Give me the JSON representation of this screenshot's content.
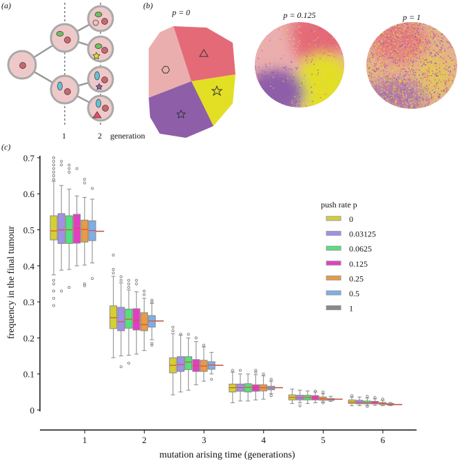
{
  "panel_a": {
    "label": "(a)",
    "generation_ticks": [
      "1",
      "2"
    ],
    "generation_label": "generation"
  },
  "panel_b": {
    "label": "(b)",
    "tumours": [
      {
        "title": "p = 0",
        "push_rate": 0
      },
      {
        "title": "p = 0.125",
        "push_rate": 0.125
      },
      {
        "title": "p = 1",
        "push_rate": 1
      }
    ],
    "clone_colors": {
      "pink": "#ebaeae",
      "red": "#e56a78",
      "yellow": "#e2df25",
      "purple": "#8e5fa8"
    }
  },
  "panel_c": {
    "label": "(c)"
  },
  "chart_data": {
    "type": "box",
    "title": "",
    "xlabel": "mutation arising time (generations)",
    "ylabel": "frequency in the final tumour",
    "categories": [
      "1",
      "2",
      "3",
      "4",
      "5",
      "6"
    ],
    "yticks": [
      "0",
      "0.1",
      "0.2",
      "0.3",
      "0.4",
      "0.5",
      "0.6",
      "0.7"
    ],
    "ylim": [
      0,
      0.72
    ],
    "legend": {
      "title": "push rate p",
      "placement": "right"
    },
    "series": [
      {
        "name": "0",
        "color": "#d4cf34",
        "stats": [
          [
            0.375,
            0.472,
            0.497,
            0.539,
            0.635
          ],
          [
            0.145,
            0.226,
            0.256,
            0.289,
            0.371
          ],
          [
            0.042,
            0.103,
            0.124,
            0.145,
            0.212
          ],
          [
            0.02,
            0.05,
            0.062,
            0.072,
            0.105
          ],
          [
            0.018,
            0.028,
            0.035,
            0.042,
            0.058
          ],
          [
            0.012,
            0.018,
            0.022,
            0.028,
            0.036
          ]
        ],
        "outliers": [
          [
            0.64,
            0.65,
            0.66,
            0.67,
            0.68,
            0.69,
            0.7,
            0.36,
            0.35,
            0.33,
            0.31,
            0.29
          ],
          [
            0.38,
            0.39,
            0.43
          ],
          [
            0.22,
            0.23
          ],
          [
            0.11
          ],
          [],
          [
            0.04
          ]
        ]
      },
      {
        "name": "0.03125",
        "color": "#a090e8",
        "stats": [
          [
            0.388,
            0.462,
            0.5,
            0.545,
            0.623
          ],
          [
            0.15,
            0.22,
            0.245,
            0.285,
            0.353
          ],
          [
            0.05,
            0.107,
            0.126,
            0.148,
            0.208
          ],
          [
            0.025,
            0.052,
            0.062,
            0.072,
            0.1
          ],
          [
            0.02,
            0.028,
            0.034,
            0.041,
            0.055
          ],
          [
            0.012,
            0.017,
            0.021,
            0.027,
            0.036
          ]
        ],
        "outliers": [
          [
            0.69,
            0.68,
            0.33
          ],
          [
            0.36,
            0.37,
            0.12
          ],
          [
            0.21
          ],
          [
            0.11
          ],
          [
            0.012
          ],
          []
        ]
      },
      {
        "name": "0.0625",
        "color": "#55e07e",
        "stats": [
          [
            0.39,
            0.462,
            0.5,
            0.539,
            0.613
          ],
          [
            0.152,
            0.227,
            0.252,
            0.28,
            0.333
          ],
          [
            0.055,
            0.112,
            0.133,
            0.148,
            0.2
          ],
          [
            0.025,
            0.05,
            0.063,
            0.073,
            0.1
          ],
          [
            0.018,
            0.028,
            0.035,
            0.041,
            0.053
          ],
          [
            0.012,
            0.017,
            0.02,
            0.025,
            0.033
          ]
        ],
        "outliers": [
          [
            0.68,
            0.67,
            0.66,
            0.34
          ],
          [
            0.36,
            0.35,
            0.34,
            0.13
          ],
          [
            0.21
          ],
          [],
          [],
          [
            0.038,
            0.01
          ]
        ]
      },
      {
        "name": "0.125",
        "color": "#e43dc3",
        "stats": [
          [
            0.4,
            0.463,
            0.504,
            0.543,
            0.594
          ],
          [
            0.155,
            0.222,
            0.249,
            0.281,
            0.328
          ],
          [
            0.07,
            0.107,
            0.123,
            0.14,
            0.19
          ],
          [
            0.028,
            0.052,
            0.062,
            0.07,
            0.098
          ],
          [
            0.02,
            0.028,
            0.034,
            0.04,
            0.05
          ],
          [
            0.013,
            0.017,
            0.02,
            0.024,
            0.031
          ]
        ],
        "outliers": [
          [
            0.67
          ],
          [
            0.36,
            0.35
          ],
          [
            0.2
          ],
          [
            0.11,
            0.105
          ],
          [
            0.052
          ],
          [
            0.035
          ]
        ]
      },
      {
        "name": "0.25",
        "color": "#e99a45",
        "stats": [
          [
            0.402,
            0.466,
            0.501,
            0.527,
            0.59
          ],
          [
            0.165,
            0.22,
            0.237,
            0.27,
            0.31
          ],
          [
            0.08,
            0.107,
            0.122,
            0.138,
            0.175
          ],
          [
            0.03,
            0.053,
            0.062,
            0.07,
            0.095
          ],
          [
            0.022,
            0.027,
            0.031,
            0.036,
            0.045
          ],
          [
            0.012,
            0.015,
            0.018,
            0.021,
            0.027
          ]
        ],
        "outliers": [
          [
            0.64,
            0.63,
            0.35,
            0.345
          ],
          [
            0.33,
            0.32
          ],
          [
            0.18
          ],
          [
            0.1
          ],
          [
            0.05,
            0.02
          ],
          [
            0.03
          ]
        ]
      },
      {
        "name": "0.5",
        "color": "#7eaee6",
        "stats": [
          [
            0.408,
            0.47,
            0.498,
            0.525,
            0.585
          ],
          [
            0.195,
            0.23,
            0.247,
            0.262,
            0.296
          ],
          [
            0.1,
            0.113,
            0.125,
            0.134,
            0.16
          ],
          [
            0.045,
            0.056,
            0.061,
            0.066,
            0.08
          ],
          [
            0.024,
            0.027,
            0.029,
            0.032,
            0.038
          ],
          [
            0.012,
            0.014,
            0.016,
            0.018,
            0.021
          ]
        ],
        "outliers": [
          [
            0.615,
            0.365
          ],
          [
            0.3,
            0.305,
            0.185,
            0.18
          ],
          [
            0.085
          ],
          [
            0.085,
            0.04
          ],
          [],
          []
        ]
      },
      {
        "name": "1",
        "color": "#888888",
        "stats": [
          [
            0.496,
            0.496,
            0.496,
            0.496,
            0.496
          ],
          [
            0.247,
            0.247,
            0.247,
            0.247,
            0.247
          ],
          [
            0.124,
            0.124,
            0.124,
            0.124,
            0.124
          ],
          [
            0.062,
            0.062,
            0.062,
            0.062,
            0.062
          ],
          [
            0.03,
            0.03,
            0.03,
            0.03,
            0.03
          ],
          [
            0.015,
            0.015,
            0.015,
            0.015,
            0.015
          ]
        ],
        "outliers": [
          [],
          [],
          [],
          [],
          [],
          []
        ]
      }
    ]
  }
}
